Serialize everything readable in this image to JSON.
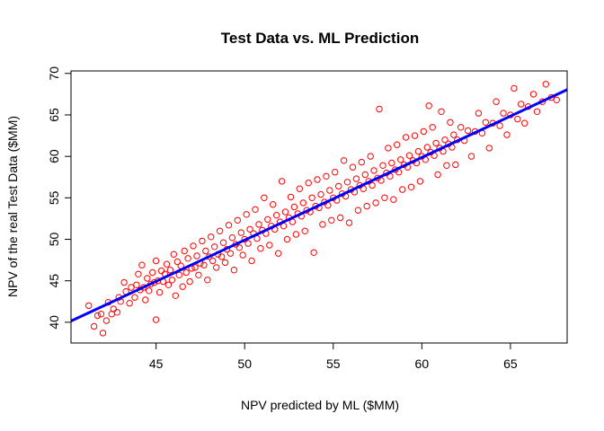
{
  "chart_data": {
    "type": "scatter",
    "title": "Test Data vs. ML Prediction",
    "xlabel": "NPV predicted by ML ($MM)",
    "ylabel": "NPV of the real Test Data ($MM)",
    "xlim": [
      40.2,
      68.2
    ],
    "ylim": [
      37.5,
      70.3
    ],
    "xticks": [
      45,
      50,
      55,
      60,
      65
    ],
    "yticks": [
      40,
      45,
      50,
      55,
      60,
      65,
      70
    ],
    "grid": false,
    "point_color": "#ff0000",
    "line_color": "#0000ff",
    "fit_line": {
      "slope": 0.996,
      "intercept": 0.11,
      "x_range": [
        40.2,
        68.2
      ]
    },
    "series": [
      {
        "marker": "open-circle",
        "points": [
          [
            41.2,
            42.0
          ],
          [
            41.5,
            39.5
          ],
          [
            41.7,
            40.8
          ],
          [
            41.9,
            41.0
          ],
          [
            42.0,
            38.7
          ],
          [
            42.2,
            40.2
          ],
          [
            42.3,
            42.4
          ],
          [
            42.5,
            41.0
          ],
          [
            42.6,
            41.6
          ],
          [
            42.8,
            41.2
          ],
          [
            42.9,
            43.0
          ],
          [
            43.0,
            42.5
          ],
          [
            43.2,
            44.8
          ],
          [
            43.3,
            43.7
          ],
          [
            43.5,
            42.3
          ],
          [
            43.6,
            44.2
          ],
          [
            43.8,
            43.0
          ],
          [
            43.9,
            44.5
          ],
          [
            44.0,
            45.8
          ],
          [
            44.1,
            43.9
          ],
          [
            44.2,
            46.9
          ],
          [
            44.3,
            44.2
          ],
          [
            44.4,
            42.7
          ],
          [
            44.5,
            45.3
          ],
          [
            44.6,
            43.8
          ],
          [
            44.7,
            44.6
          ],
          [
            44.8,
            46.0
          ],
          [
            44.9,
            44.8
          ],
          [
            45.0,
            40.3
          ],
          [
            45.0,
            47.4
          ],
          [
            45.1,
            45.0
          ],
          [
            45.2,
            43.6
          ],
          [
            45.3,
            46.2
          ],
          [
            45.4,
            44.9
          ],
          [
            45.5,
            45.8
          ],
          [
            45.6,
            47.0
          ],
          [
            45.7,
            44.5
          ],
          [
            45.8,
            46.3
          ],
          [
            45.9,
            45.1
          ],
          [
            46.0,
            48.2
          ],
          [
            46.1,
            43.2
          ],
          [
            46.2,
            47.3
          ],
          [
            46.3,
            45.7
          ],
          [
            46.4,
            46.8
          ],
          [
            46.5,
            44.3
          ],
          [
            46.6,
            48.6
          ],
          [
            46.7,
            46.0
          ],
          [
            46.8,
            47.7
          ],
          [
            46.9,
            44.9
          ],
          [
            47.0,
            46.5
          ],
          [
            47.1,
            49.2
          ],
          [
            47.2,
            46.6
          ],
          [
            47.3,
            48.0
          ],
          [
            47.4,
            45.7
          ],
          [
            47.5,
            47.1
          ],
          [
            47.6,
            49.8
          ],
          [
            47.7,
            46.9
          ],
          [
            47.8,
            48.6
          ],
          [
            47.9,
            45.1
          ],
          [
            48.0,
            47.9
          ],
          [
            48.1,
            50.3
          ],
          [
            48.2,
            47.4
          ],
          [
            48.3,
            49.1
          ],
          [
            48.4,
            46.6
          ],
          [
            48.5,
            48.2
          ],
          [
            48.6,
            51.0
          ],
          [
            48.7,
            47.9
          ],
          [
            48.8,
            49.6
          ],
          [
            48.9,
            47.2
          ],
          [
            49.0,
            48.8
          ],
          [
            49.1,
            51.7
          ],
          [
            49.2,
            48.3
          ],
          [
            49.3,
            50.2
          ],
          [
            49.4,
            46.3
          ],
          [
            49.5,
            49.4
          ],
          [
            49.6,
            52.3
          ],
          [
            49.7,
            49.0
          ],
          [
            49.8,
            50.8
          ],
          [
            49.9,
            48.1
          ],
          [
            50.0,
            50.0
          ],
          [
            50.1,
            53.0
          ],
          [
            50.2,
            49.5
          ],
          [
            50.3,
            51.2
          ],
          [
            50.4,
            47.4
          ],
          [
            50.5,
            50.7
          ],
          [
            50.6,
            53.6
          ],
          [
            50.7,
            50.1
          ],
          [
            50.8,
            51.8
          ],
          [
            50.9,
            48.9
          ],
          [
            51.0,
            51.1
          ],
          [
            51.1,
            55.0
          ],
          [
            51.2,
            50.7
          ],
          [
            51.3,
            52.4
          ],
          [
            51.4,
            49.3
          ],
          [
            51.5,
            51.6
          ],
          [
            51.6,
            54.2
          ],
          [
            51.7,
            51.2
          ],
          [
            51.8,
            52.9
          ],
          [
            51.9,
            48.3
          ],
          [
            52.0,
            52.1
          ],
          [
            52.1,
            57.0
          ],
          [
            52.2,
            51.6
          ],
          [
            52.3,
            53.3
          ],
          [
            52.4,
            50.0
          ],
          [
            52.5,
            52.6
          ],
          [
            52.6,
            55.1
          ],
          [
            52.7,
            52.1
          ],
          [
            52.8,
            53.9
          ],
          [
            52.9,
            50.6
          ],
          [
            53.0,
            53.1
          ],
          [
            53.1,
            56.1
          ],
          [
            53.2,
            52.8
          ],
          [
            53.3,
            54.4
          ],
          [
            53.4,
            51.0
          ],
          [
            53.5,
            53.5
          ],
          [
            53.6,
            56.8
          ],
          [
            53.7,
            53.3
          ],
          [
            53.8,
            55.0
          ],
          [
            53.9,
            48.4
          ],
          [
            54.0,
            54.0
          ],
          [
            54.1,
            57.2
          ],
          [
            54.2,
            53.8
          ],
          [
            54.3,
            55.4
          ],
          [
            54.4,
            51.8
          ],
          [
            54.5,
            54.5
          ],
          [
            54.6,
            57.6
          ],
          [
            54.7,
            54.1
          ],
          [
            54.8,
            55.9
          ],
          [
            54.9,
            52.3
          ],
          [
            55.0,
            55.0
          ],
          [
            55.1,
            58.1
          ],
          [
            55.2,
            54.7
          ],
          [
            55.3,
            56.4
          ],
          [
            55.4,
            52.6
          ],
          [
            55.5,
            55.5
          ],
          [
            55.6,
            59.5
          ],
          [
            55.7,
            55.2
          ],
          [
            55.8,
            56.9
          ],
          [
            55.9,
            52.0
          ],
          [
            56.0,
            56.0
          ],
          [
            56.1,
            58.7
          ],
          [
            56.2,
            55.7
          ],
          [
            56.3,
            57.3
          ],
          [
            56.4,
            53.5
          ],
          [
            56.5,
            56.5
          ],
          [
            56.6,
            59.3
          ],
          [
            56.7,
            56.1
          ],
          [
            56.8,
            57.8
          ],
          [
            56.9,
            54.0
          ],
          [
            57.0,
            57.0
          ],
          [
            57.1,
            60.0
          ],
          [
            57.2,
            56.5
          ],
          [
            57.3,
            58.3
          ],
          [
            57.4,
            54.4
          ],
          [
            57.5,
            57.4
          ],
          [
            57.6,
            65.7
          ],
          [
            57.7,
            57.1
          ],
          [
            57.8,
            58.9
          ],
          [
            57.9,
            55.0
          ],
          [
            58.0,
            58.0
          ],
          [
            58.1,
            61.0
          ],
          [
            58.2,
            57.6
          ],
          [
            58.3,
            59.2
          ],
          [
            58.4,
            54.8
          ],
          [
            58.5,
            58.4
          ],
          [
            58.6,
            61.4
          ],
          [
            58.7,
            58.1
          ],
          [
            58.8,
            59.6
          ],
          [
            58.9,
            56.0
          ],
          [
            59.0,
            59.0
          ],
          [
            59.1,
            62.3
          ],
          [
            59.2,
            58.7
          ],
          [
            59.3,
            60.1
          ],
          [
            59.4,
            56.3
          ],
          [
            59.5,
            59.5
          ],
          [
            59.6,
            62.5
          ],
          [
            59.7,
            59.2
          ],
          [
            59.8,
            60.6
          ],
          [
            59.9,
            57.0
          ],
          [
            60.0,
            60.0
          ],
          [
            60.1,
            63.0
          ],
          [
            60.2,
            59.6
          ],
          [
            60.3,
            61.1
          ],
          [
            60.4,
            66.1
          ],
          [
            60.5,
            60.5
          ],
          [
            60.6,
            63.5
          ],
          [
            60.7,
            60.1
          ],
          [
            60.8,
            61.6
          ],
          [
            60.9,
            57.8
          ],
          [
            61.0,
            61.0
          ],
          [
            61.1,
            65.4
          ],
          [
            61.2,
            60.6
          ],
          [
            61.3,
            62.0
          ],
          [
            61.4,
            58.9
          ],
          [
            61.5,
            61.5
          ],
          [
            61.6,
            64.1
          ],
          [
            61.7,
            61.1
          ],
          [
            61.8,
            62.6
          ],
          [
            61.9,
            59.0
          ],
          [
            62.0,
            62.0
          ],
          [
            62.2,
            63.5
          ],
          [
            62.4,
            61.9
          ],
          [
            62.6,
            63.1
          ],
          [
            62.8,
            60.0
          ],
          [
            63.0,
            63.0
          ],
          [
            63.2,
            65.2
          ],
          [
            63.4,
            62.8
          ],
          [
            63.6,
            64.1
          ],
          [
            63.8,
            61.0
          ],
          [
            64.0,
            64.0
          ],
          [
            64.2,
            66.6
          ],
          [
            64.4,
            63.7
          ],
          [
            64.6,
            65.2
          ],
          [
            64.8,
            62.6
          ],
          [
            65.0,
            65.0
          ],
          [
            65.2,
            68.2
          ],
          [
            65.4,
            64.5
          ],
          [
            65.6,
            66.3
          ],
          [
            65.8,
            64.0
          ],
          [
            66.0,
            66.0
          ],
          [
            66.3,
            67.5
          ],
          [
            66.5,
            65.4
          ],
          [
            66.8,
            66.6
          ],
          [
            67.0,
            68.7
          ],
          [
            67.3,
            67.1
          ],
          [
            67.6,
            66.8
          ]
        ]
      }
    ]
  }
}
